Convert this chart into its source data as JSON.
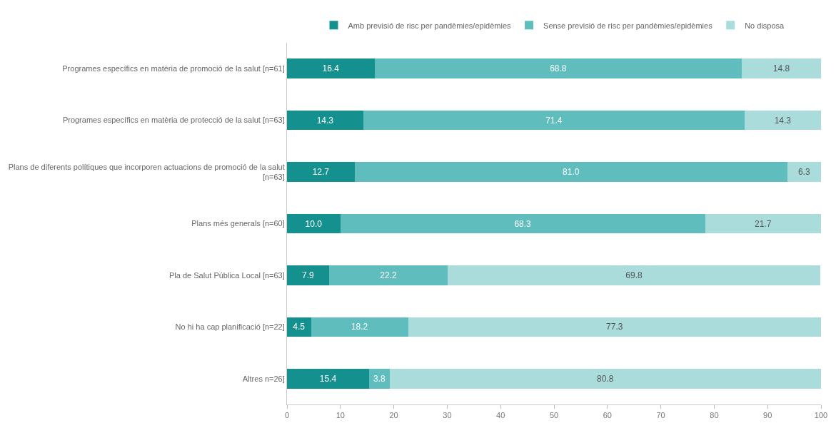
{
  "chart_data": {
    "type": "bar",
    "orientation": "horizontal",
    "stacked": true,
    "categories": [
      "Programes específics en matèria de promoció de la salut [n=61]",
      "Programes específics en matèria de protecció de la salut [n=63]",
      "Plans de diferents polítiques que incorporen actuacions de promoció de la salut\n[n=63]",
      "Plans més generals [n=60]",
      "Pla de Salut Pública Local [n=63]",
      "No hi ha cap planificació [n=22]",
      "Altres n=26]"
    ],
    "series": [
      {
        "name": "Amb previsió de risc per pandèmies/epidèmies",
        "color": "#14918f",
        "values": [
          16.4,
          14.3,
          12.7,
          10.0,
          7.9,
          4.5,
          15.4
        ],
        "value_labels": [
          "16.4",
          "14.3",
          "12.7",
          "10.0",
          "7.9",
          "4.5",
          "15.4"
        ]
      },
      {
        "name": "Sense previsió de risc per pandèmies/epidèmies",
        "color": "#5fbdbd",
        "values": [
          68.8,
          71.4,
          81.0,
          68.3,
          22.2,
          18.2,
          3.8
        ],
        "value_labels": [
          "68.8",
          "71.4",
          "81.0",
          "68.3",
          "22.2",
          "18.2",
          "3.8"
        ]
      },
      {
        "name": "No disposa",
        "color": "#aadcdc",
        "values": [
          14.8,
          14.3,
          6.3,
          21.7,
          69.8,
          77.3,
          80.8
        ],
        "value_labels": [
          "14.8",
          "14.3",
          "6.3",
          "21.7",
          "69.8",
          "77.3",
          "80.8"
        ]
      }
    ],
    "xlim": [
      0,
      100
    ],
    "xticks": [
      0,
      10,
      20,
      30,
      40,
      50,
      60,
      70,
      80,
      90,
      100
    ],
    "grid": false,
    "legend": "top"
  }
}
